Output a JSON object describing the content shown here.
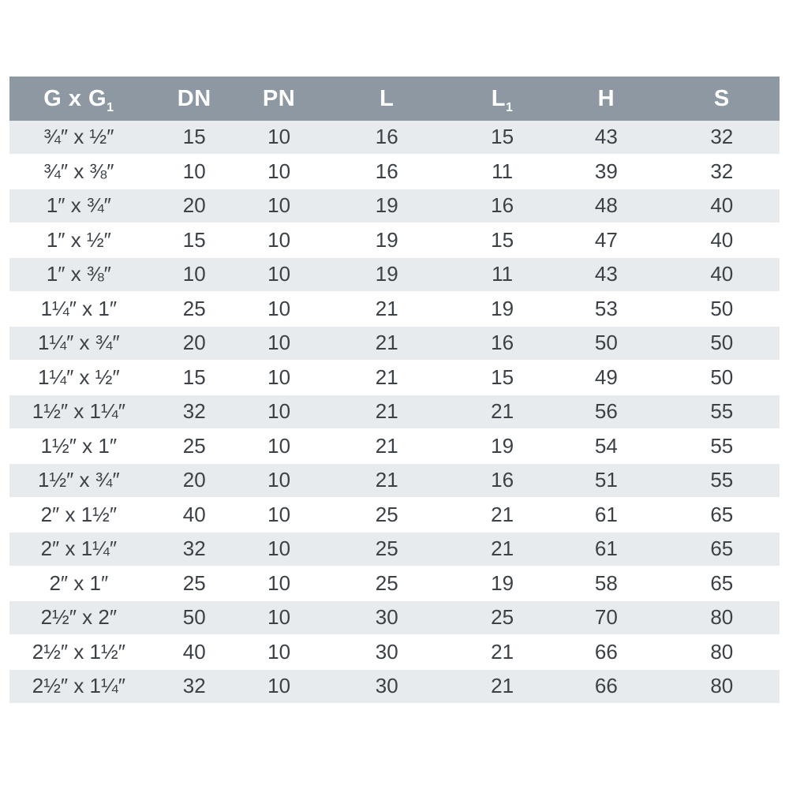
{
  "colors": {
    "header_bg": "#8d98a2",
    "header_text": "#ffffff",
    "row_alt_bg": "#e8ebee",
    "row_bg": "#ffffff",
    "cell_text": "#3b4147"
  },
  "table": {
    "columns": [
      {
        "label": "G x G",
        "sub": "1"
      },
      {
        "label": "DN",
        "sub": ""
      },
      {
        "label": "PN",
        "sub": ""
      },
      {
        "label": "L",
        "sub": ""
      },
      {
        "label": "L",
        "sub": "1"
      },
      {
        "label": "H",
        "sub": ""
      },
      {
        "label": "S",
        "sub": ""
      }
    ],
    "rows": [
      [
        "¾″ x ½″",
        "15",
        "10",
        "16",
        "15",
        "43",
        "32"
      ],
      [
        "¾″ x ⅜″",
        "10",
        "10",
        "16",
        "11",
        "39",
        "32"
      ],
      [
        "1″ x ¾″",
        "20",
        "10",
        "19",
        "16",
        "48",
        "40"
      ],
      [
        "1″ x ½″",
        "15",
        "10",
        "19",
        "15",
        "47",
        "40"
      ],
      [
        "1″ x ⅜″",
        "10",
        "10",
        "19",
        "11",
        "43",
        "40"
      ],
      [
        "1¼″ x 1″",
        "25",
        "10",
        "21",
        "19",
        "53",
        "50"
      ],
      [
        "1¼″ x ¾″",
        "20",
        "10",
        "21",
        "16",
        "50",
        "50"
      ],
      [
        "1¼″ x ½″",
        "15",
        "10",
        "21",
        "15",
        "49",
        "50"
      ],
      [
        "1½″ x 1¼″",
        "32",
        "10",
        "21",
        "21",
        "56",
        "55"
      ],
      [
        "1½″ x 1″",
        "25",
        "10",
        "21",
        "19",
        "54",
        "55"
      ],
      [
        "1½″ x ¾″",
        "20",
        "10",
        "21",
        "16",
        "51",
        "55"
      ],
      [
        "2″ x 1½″",
        "40",
        "10",
        "25",
        "21",
        "61",
        "65"
      ],
      [
        "2″ x 1¼″",
        "32",
        "10",
        "25",
        "21",
        "61",
        "65"
      ],
      [
        "2″ x 1″",
        "25",
        "10",
        "25",
        "19",
        "58",
        "65"
      ],
      [
        "2½″ x 2″",
        "50",
        "10",
        "30",
        "25",
        "70",
        "80"
      ],
      [
        "2½″ x 1½″",
        "40",
        "10",
        "30",
        "21",
        "66",
        "80"
      ],
      [
        "2½″ x 1¼″",
        "32",
        "10",
        "30",
        "21",
        "66",
        "80"
      ]
    ]
  }
}
